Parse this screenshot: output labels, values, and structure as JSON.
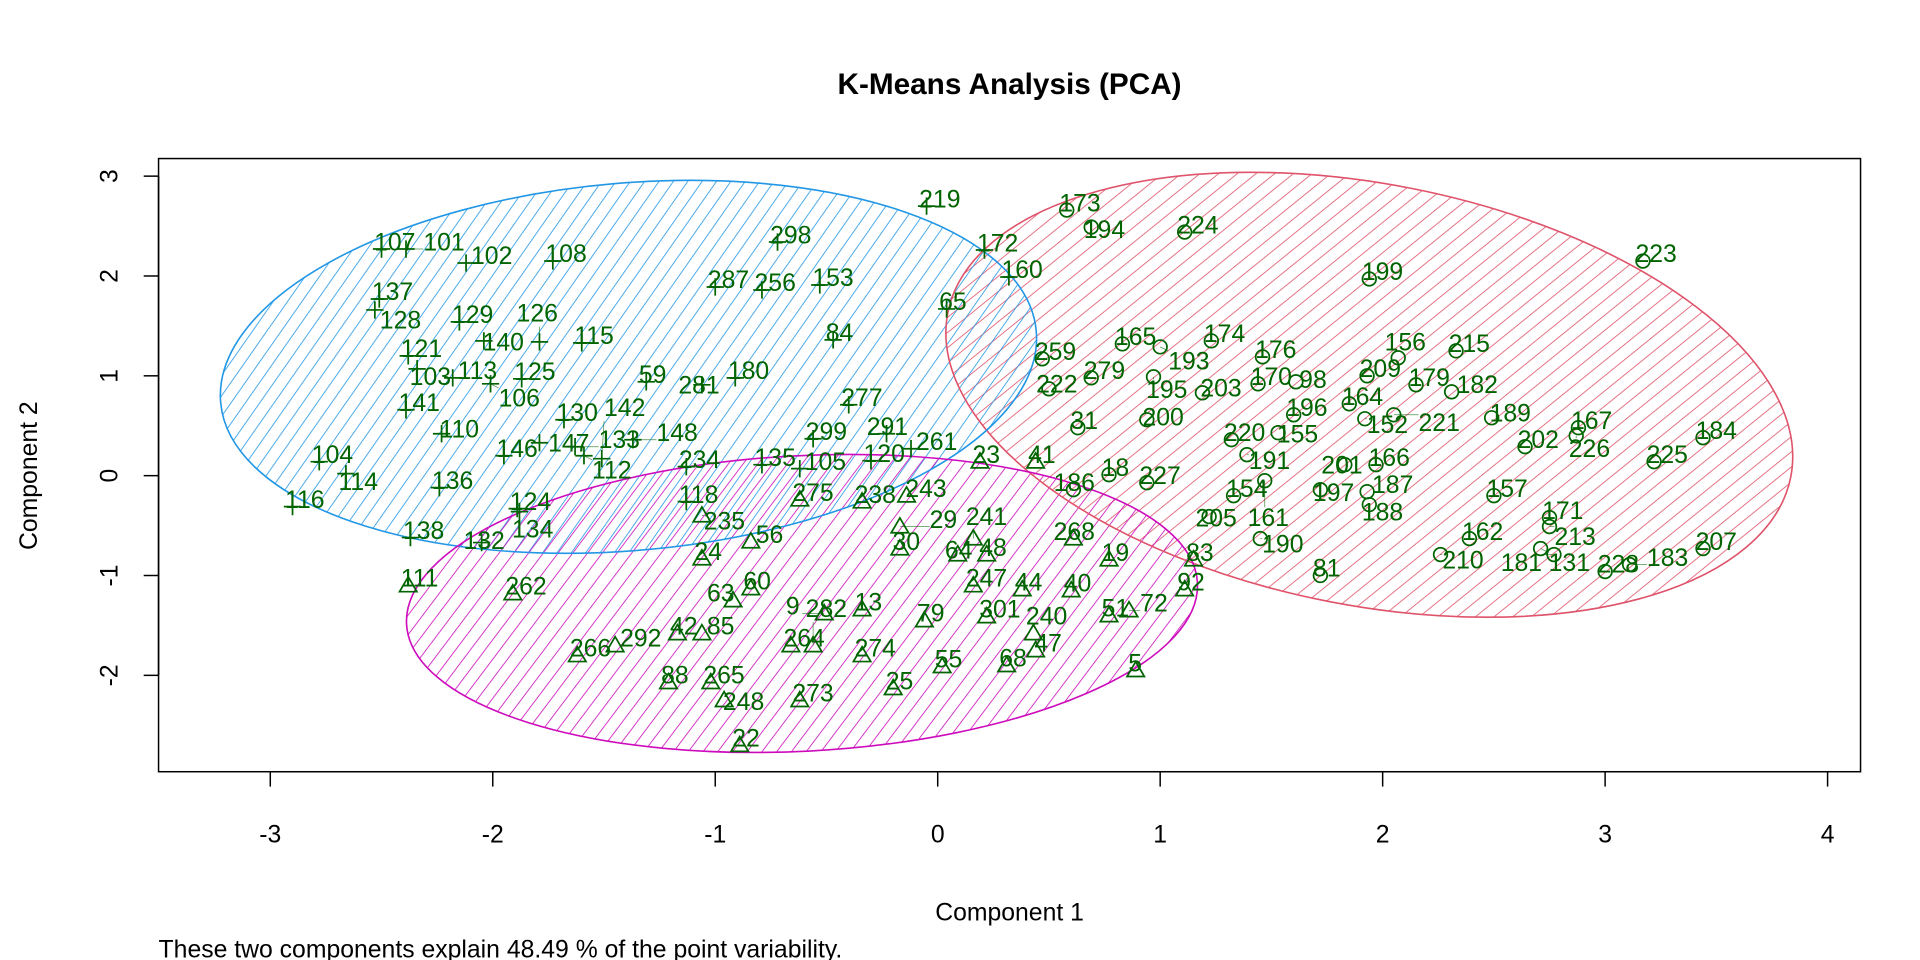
{
  "chart_data": {
    "type": "scatter",
    "title": "K-Means Analysis (PCA)",
    "xlabel": "Component 1",
    "ylabel": "Component 2",
    "subtitle": "These two components explain 48.49 % of the point variability.",
    "xlim": [
      -3.5,
      4.15
    ],
    "ylim": [
      -2.95,
      3.2
    ],
    "xticks": [
      "-3",
      "-2",
      "-1",
      "0",
      "1",
      "2",
      "3",
      "4"
    ],
    "yticks": [
      "-2",
      "-1",
      "0",
      "1",
      "2",
      "3"
    ],
    "grid": false,
    "point_color": "#006400",
    "clusters": [
      {
        "id": 1,
        "color": "#DF536B",
        "symbol": "circle",
        "center": [
          1.94,
          0.81
        ],
        "semi_axes": [
          1.93,
          2.11
        ],
        "angle_deg": 11
      },
      {
        "id": 2,
        "color": "#2297E6",
        "symbol": "plus",
        "center": [
          -1.39,
          1.09
        ],
        "semi_axes": [
          1.84,
          1.84
        ],
        "angle_deg": -5
      },
      {
        "id": 3,
        "color": "#CD0BBC",
        "symbol": "triangle",
        "center": [
          -0.61,
          -1.28
        ],
        "semi_axes": [
          1.78,
          1.48
        ],
        "angle_deg": -3
      }
    ],
    "points": [
      {
        "id": "107",
        "x": -2.5,
        "y": 2.27,
        "c": 2
      },
      {
        "id": "101",
        "x": -2.39,
        "y": 2.27,
        "c": 2
      },
      {
        "id": "102",
        "x": -2.12,
        "y": 2.13,
        "c": 2
      },
      {
        "id": "108",
        "x": -1.73,
        "y": 2.15,
        "c": 2
      },
      {
        "id": "137",
        "x": -2.51,
        "y": 1.77,
        "c": 2
      },
      {
        "id": "128",
        "x": -2.53,
        "y": 1.66,
        "c": 2
      },
      {
        "id": "129",
        "x": -2.15,
        "y": 1.54,
        "c": 2
      },
      {
        "id": "140",
        "x": -2.04,
        "y": 1.35,
        "c": 2
      },
      {
        "id": "115",
        "x": -1.6,
        "y": 1.33,
        "c": 2
      },
      {
        "id": "126",
        "x": -1.79,
        "y": 1.34,
        "c": 2
      },
      {
        "id": "121",
        "x": -2.38,
        "y": 1.2,
        "c": 2
      },
      {
        "id": "103",
        "x": -2.34,
        "y": 1.07,
        "c": 2
      },
      {
        "id": "113",
        "x": -2.18,
        "y": 0.98,
        "c": 2
      },
      {
        "id": "125",
        "x": -1.87,
        "y": 0.97,
        "c": 2
      },
      {
        "id": "106",
        "x": -2.01,
        "y": 0.92,
        "c": 2
      },
      {
        "id": "59",
        "x": -1.31,
        "y": 0.94,
        "c": 2
      },
      {
        "id": "141",
        "x": -2.39,
        "y": 0.66,
        "c": 2
      },
      {
        "id": "110",
        "x": -2.23,
        "y": 0.42,
        "c": 2
      },
      {
        "id": "130",
        "x": -1.68,
        "y": 0.56,
        "c": 2
      },
      {
        "id": "146",
        "x": -1.95,
        "y": 0.2,
        "c": 2
      },
      {
        "id": "147",
        "x": -1.79,
        "y": 0.33,
        "c": 2
      },
      {
        "id": "133",
        "x": -1.63,
        "y": 0.29,
        "c": 2
      },
      {
        "id": "104",
        "x": -2.78,
        "y": 0.14,
        "c": 2
      },
      {
        "id": "114",
        "x": -2.66,
        "y": 0.02,
        "c": 2
      },
      {
        "id": "116",
        "x": -2.9,
        "y": -0.31,
        "c": 2
      },
      {
        "id": "136",
        "x": -2.24,
        "y": -0.12,
        "c": 2
      },
      {
        "id": "124",
        "x": -1.89,
        "y": -0.33,
        "c": 2
      },
      {
        "id": "134",
        "x": -1.88,
        "y": -0.36,
        "c": 2
      },
      {
        "id": "138",
        "x": -2.37,
        "y": -0.62,
        "c": 2
      },
      {
        "id": "132",
        "x": -2.05,
        "y": -0.67,
        "c": 2
      },
      {
        "id": "219",
        "x": -0.05,
        "y": 2.7,
        "c": 2
      },
      {
        "id": "298",
        "x": -0.72,
        "y": 2.34,
        "c": 2
      },
      {
        "id": "287",
        "x": -1.0,
        "y": 1.89,
        "c": 2
      },
      {
        "id": "256",
        "x": -0.79,
        "y": 1.86,
        "c": 2
      },
      {
        "id": "153",
        "x": -0.53,
        "y": 1.91,
        "c": 2
      },
      {
        "id": "172",
        "x": 0.21,
        "y": 2.26,
        "c": 2
      },
      {
        "id": "160",
        "x": 0.32,
        "y": 1.99,
        "c": 2
      },
      {
        "id": "65",
        "x": 0.04,
        "y": 1.67,
        "c": 2
      },
      {
        "id": "84",
        "x": -0.47,
        "y": 1.36,
        "c": 2
      },
      {
        "id": "180",
        "x": -0.91,
        "y": 0.98,
        "c": 2
      },
      {
        "id": "281",
        "x": -1.06,
        "y": 0.91,
        "c": 2
      },
      {
        "id": "277",
        "x": -0.4,
        "y": 0.71,
        "c": 2
      },
      {
        "id": "299",
        "x": -0.56,
        "y": 0.37,
        "c": 2
      },
      {
        "id": "234",
        "x": -1.13,
        "y": 0.09,
        "c": 2
      },
      {
        "id": "118",
        "x": -1.13,
        "y": -0.26,
        "c": 2
      },
      {
        "id": "120",
        "x": -0.3,
        "y": 0.15,
        "c": 2
      },
      {
        "id": "261",
        "x": -0.12,
        "y": 0.27,
        "c": 2
      },
      {
        "id": "291",
        "x": -0.23,
        "y": 0.42,
        "c": 2
      },
      {
        "id": "112",
        "x": -1.59,
        "y": 0.2,
        "c": 2
      },
      {
        "id": "142",
        "x": -1.51,
        "y": 0.17,
        "c": 2
      },
      {
        "id": "148",
        "x": -1.37,
        "y": 0.36,
        "c": 2
      },
      {
        "id": "135",
        "x": -0.79,
        "y": 0.11,
        "c": 2
      },
      {
        "id": "105",
        "x": -0.62,
        "y": 0.07,
        "c": 2
      },
      {
        "id": "111",
        "x": -2.38,
        "y": -1.1,
        "c": 3
      },
      {
        "id": "262",
        "x": -1.91,
        "y": -1.18,
        "c": 3
      },
      {
        "id": "235",
        "x": -1.06,
        "y": -0.4,
        "c": 3
      },
      {
        "id": "24",
        "x": -1.06,
        "y": -0.83,
        "c": 3
      },
      {
        "id": "56",
        "x": -0.84,
        "y": -0.66,
        "c": 3
      },
      {
        "id": "266",
        "x": -1.62,
        "y": -1.8,
        "c": 3
      },
      {
        "id": "292",
        "x": -1.45,
        "y": -1.7,
        "c": 3
      },
      {
        "id": "42",
        "x": -1.17,
        "y": -1.58,
        "c": 3
      },
      {
        "id": "85",
        "x": -1.06,
        "y": -1.58,
        "c": 3
      },
      {
        "id": "88",
        "x": -1.21,
        "y": -2.07,
        "c": 3
      },
      {
        "id": "265",
        "x": -1.02,
        "y": -2.07,
        "c": 3
      },
      {
        "id": "248",
        "x": -0.96,
        "y": -2.25,
        "c": 3
      },
      {
        "id": "273",
        "x": -0.62,
        "y": -2.25,
        "c": 3
      },
      {
        "id": "22",
        "x": -0.89,
        "y": -2.7,
        "c": 3
      },
      {
        "id": "274",
        "x": -0.34,
        "y": -1.8,
        "c": 3
      },
      {
        "id": "25",
        "x": -0.2,
        "y": -2.13,
        "c": 3
      },
      {
        "id": "55",
        "x": 0.02,
        "y": -1.91,
        "c": 3
      },
      {
        "id": "68",
        "x": 0.31,
        "y": -1.9,
        "c": 3
      },
      {
        "id": "47",
        "x": 0.44,
        "y": -1.75,
        "c": 3
      },
      {
        "id": "240",
        "x": 0.43,
        "y": -1.58,
        "c": 3
      },
      {
        "id": "5",
        "x": 0.89,
        "y": -1.95,
        "c": 3
      },
      {
        "id": "51",
        "x": 0.77,
        "y": -1.4,
        "c": 3
      },
      {
        "id": "72",
        "x": 0.86,
        "y": -1.35,
        "c": 3
      },
      {
        "id": "92",
        "x": 1.11,
        "y": -1.14,
        "c": 3
      },
      {
        "id": "40",
        "x": 0.6,
        "y": -1.15,
        "c": 3
      },
      {
        "id": "44",
        "x": 0.38,
        "y": -1.14,
        "c": 3
      },
      {
        "id": "247",
        "x": 0.16,
        "y": -1.1,
        "c": 3
      },
      {
        "id": "79",
        "x": -0.06,
        "y": -1.45,
        "c": 3
      },
      {
        "id": "301",
        "x": 0.22,
        "y": -1.41,
        "c": 3
      },
      {
        "id": "13",
        "x": -0.34,
        "y": -1.34,
        "c": 3
      },
      {
        "id": "264",
        "x": -0.66,
        "y": -1.7,
        "c": 3
      },
      {
        "id": "282",
        "x": -0.56,
        "y": -1.7,
        "c": 3
      },
      {
        "id": "19",
        "x": 0.77,
        "y": -0.84,
        "c": 3
      },
      {
        "id": "83",
        "x": 1.15,
        "y": -0.84,
        "c": 3
      },
      {
        "id": "268",
        "x": 0.61,
        "y": -0.63,
        "c": 3
      },
      {
        "id": "48",
        "x": 0.22,
        "y": -0.79,
        "c": 3
      },
      {
        "id": "64",
        "x": 0.09,
        "y": -0.79,
        "c": 3
      },
      {
        "id": "30",
        "x": -0.17,
        "y": -0.73,
        "c": 3
      },
      {
        "id": "238",
        "x": -0.34,
        "y": -0.26,
        "c": 3
      },
      {
        "id": "243",
        "x": -0.14,
        "y": -0.2,
        "c": 3
      },
      {
        "id": "29",
        "x": -0.17,
        "y": -0.51,
        "c": 3
      },
      {
        "id": "60",
        "x": -0.84,
        "y": -1.13,
        "c": 3
      },
      {
        "id": "63",
        "x": -0.92,
        "y": -1.25,
        "c": 3
      },
      {
        "id": "9",
        "x": -0.51,
        "y": -1.38,
        "c": 3
      },
      {
        "id": "241",
        "x": 0.16,
        "y": -0.63,
        "c": 3
      },
      {
        "id": "41",
        "x": 0.44,
        "y": 0.14,
        "c": 3
      },
      {
        "id": "23",
        "x": 0.19,
        "y": 0.14,
        "c": 3
      },
      {
        "id": "275",
        "x": -0.62,
        "y": -0.24,
        "c": 3
      },
      {
        "id": "18",
        "x": 0.77,
        "y": 0.01,
        "c": 1
      },
      {
        "id": "186",
        "x": 0.61,
        "y": -0.14,
        "c": 1
      },
      {
        "id": "227",
        "x": 0.94,
        "y": -0.07,
        "c": 1
      },
      {
        "id": "173",
        "x": 0.58,
        "y": 2.66,
        "c": 1
      },
      {
        "id": "194",
        "x": 0.69,
        "y": 2.49,
        "c": 1
      },
      {
        "id": "224",
        "x": 1.11,
        "y": 2.44,
        "c": 1
      },
      {
        "id": "199",
        "x": 1.94,
        "y": 1.97,
        "c": 1
      },
      {
        "id": "223",
        "x": 3.17,
        "y": 2.15,
        "c": 1
      },
      {
        "id": "176",
        "x": 1.46,
        "y": 1.19,
        "c": 1
      },
      {
        "id": "174",
        "x": 1.23,
        "y": 1.35,
        "c": 1
      },
      {
        "id": "165",
        "x": 0.83,
        "y": 1.32,
        "c": 1
      },
      {
        "id": "193",
        "x": 1.0,
        "y": 1.29,
        "c": 1
      },
      {
        "id": "259",
        "x": 0.47,
        "y": 1.17,
        "c": 1
      },
      {
        "id": "279",
        "x": 0.69,
        "y": 0.98,
        "c": 1
      },
      {
        "id": "222",
        "x": 0.5,
        "y": 0.87,
        "c": 1
      },
      {
        "id": "195",
        "x": 0.97,
        "y": 0.99,
        "c": 1
      },
      {
        "id": "203",
        "x": 1.19,
        "y": 0.83,
        "c": 1
      },
      {
        "id": "170",
        "x": 1.44,
        "y": 0.92,
        "c": 1
      },
      {
        "id": "98",
        "x": 1.61,
        "y": 0.94,
        "c": 1
      },
      {
        "id": "31",
        "x": 0.63,
        "y": 0.48,
        "c": 1
      },
      {
        "id": "200",
        "x": 0.94,
        "y": 0.56,
        "c": 1
      },
      {
        "id": "209",
        "x": 1.93,
        "y": 1.0,
        "c": 1
      },
      {
        "id": "156",
        "x": 2.07,
        "y": 1.18,
        "c": 1
      },
      {
        "id": "215",
        "x": 2.33,
        "y": 1.25,
        "c": 1
      },
      {
        "id": "179",
        "x": 2.15,
        "y": 0.91,
        "c": 1
      },
      {
        "id": "182",
        "x": 2.31,
        "y": 0.84,
        "c": 1
      },
      {
        "id": "164",
        "x": 1.85,
        "y": 0.72,
        "c": 1
      },
      {
        "id": "152",
        "x": 1.92,
        "y": 0.57,
        "c": 1
      },
      {
        "id": "221",
        "x": 2.05,
        "y": 0.61,
        "c": 1
      },
      {
        "id": "196",
        "x": 1.6,
        "y": 0.61,
        "c": 1
      },
      {
        "id": "155",
        "x": 1.53,
        "y": 0.43,
        "c": 1
      },
      {
        "id": "189",
        "x": 2.49,
        "y": 0.58,
        "c": 1
      },
      {
        "id": "202",
        "x": 2.64,
        "y": 0.29,
        "c": 1
      },
      {
        "id": "167",
        "x": 2.88,
        "y": 0.48,
        "c": 1
      },
      {
        "id": "226",
        "x": 2.87,
        "y": 0.4,
        "c": 1
      },
      {
        "id": "184",
        "x": 3.44,
        "y": 0.38,
        "c": 1
      },
      {
        "id": "225",
        "x": 3.22,
        "y": 0.14,
        "c": 1
      },
      {
        "id": "220",
        "x": 1.32,
        "y": 0.36,
        "c": 1
      },
      {
        "id": "191",
        "x": 1.39,
        "y": 0.21,
        "c": 1
      },
      {
        "id": "166",
        "x": 1.97,
        "y": 0.11,
        "c": 1
      },
      {
        "id": "201",
        "x": 1.83,
        "y": 0.11,
        "c": 1
      },
      {
        "id": "187",
        "x": 1.93,
        "y": -0.16,
        "c": 1
      },
      {
        "id": "188",
        "x": 1.94,
        "y": -0.29,
        "c": 1
      },
      {
        "id": "197",
        "x": 1.72,
        "y": -0.14,
        "c": 1
      },
      {
        "id": "154",
        "x": 1.33,
        "y": -0.2,
        "c": 1
      },
      {
        "id": "161",
        "x": 1.47,
        "y": -0.05,
        "c": 1
      },
      {
        "id": "205",
        "x": 1.22,
        "y": -0.41,
        "c": 1
      },
      {
        "id": "190",
        "x": 1.45,
        "y": -0.63,
        "c": 1
      },
      {
        "id": "81",
        "x": 1.72,
        "y": -1.0,
        "c": 1
      },
      {
        "id": "157",
        "x": 2.5,
        "y": -0.2,
        "c": 1
      },
      {
        "id": "171",
        "x": 2.75,
        "y": -0.42,
        "c": 1
      },
      {
        "id": "213",
        "x": 2.75,
        "y": -0.51,
        "c": 1
      },
      {
        "id": "162",
        "x": 2.39,
        "y": -0.63,
        "c": 1
      },
      {
        "id": "210",
        "x": 2.26,
        "y": -0.79,
        "c": 1
      },
      {
        "id": "131",
        "x": 2.71,
        "y": -0.73,
        "c": 1
      },
      {
        "id": "181",
        "x": 2.77,
        "y": -0.79,
        "c": 1
      },
      {
        "id": "228",
        "x": 3.0,
        "y": -0.96,
        "c": 1
      },
      {
        "id": "183",
        "x": 3.11,
        "y": -0.89,
        "c": 1
      },
      {
        "id": "207",
        "x": 3.44,
        "y": -0.73,
        "c": 1
      }
    ]
  }
}
